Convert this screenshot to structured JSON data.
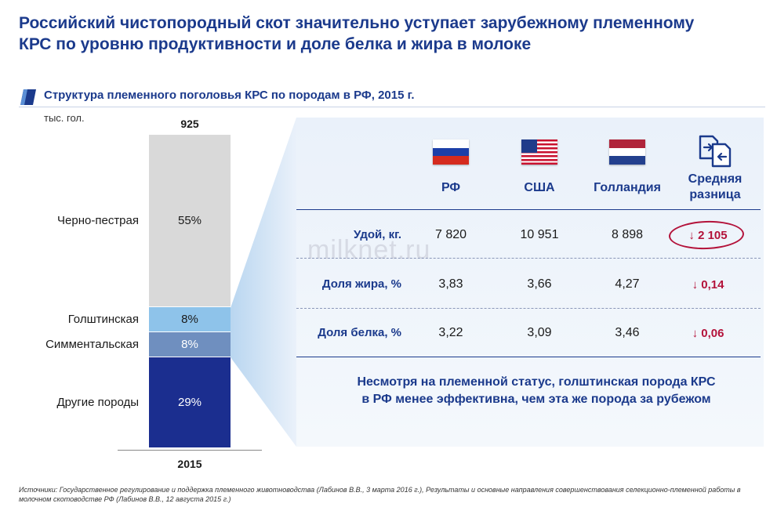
{
  "title_line1": "Российский чистопородный скот значительно уступает зарубежному племенному",
  "title_line2": "КРС по уровню продуктивности и доле белка и жира в молоке",
  "watermark": "milknet.ru",
  "chart_data": {
    "type": "bar",
    "title": "Структура племенного поголовья КРС по породам в РФ, 2015 г.",
    "unit_label": "тыс. гол.",
    "total_label": "925",
    "categories": [
      "2015"
    ],
    "series": [
      {
        "name": "Черно-пестрая",
        "values": [
          55
        ],
        "label": "55%",
        "color": "#d9d9d9",
        "text_color": "#1a1a1a"
      },
      {
        "name": "Голштинская",
        "values": [
          8
        ],
        "label": "8%",
        "color": "#8ec3ea",
        "text_color": "#1a1a1a"
      },
      {
        "name": "Симментальская",
        "values": [
          8
        ],
        "label": "8%",
        "color": "#6f8fbf",
        "text_color": "#ffffff"
      },
      {
        "name": "Другие породы",
        "values": [
          29
        ],
        "label": "29%",
        "color": "#1b2e8f",
        "text_color": "#ffffff"
      }
    ],
    "ylim": [
      0,
      100
    ]
  },
  "table": {
    "columns": [
      "РФ",
      "США",
      "Голландия"
    ],
    "diff_header_line1": "Средняя",
    "diff_header_line2": "разница",
    "rows": [
      {
        "label": "Удой, кг.",
        "values": [
          "7 820",
          "10 951",
          "8 898"
        ],
        "diff": "2 105"
      },
      {
        "label": "Доля жира, %",
        "values": [
          "3,83",
          "3,66",
          "4,27"
        ],
        "diff": "0,14"
      },
      {
        "label": "Доля белка, %",
        "values": [
          "3,22",
          "3,09",
          "3,46"
        ],
        "diff": "0,06"
      }
    ],
    "diff_arrow": "↓"
  },
  "note_line1": "Несмотря на племенной статус, голштинская порода КРС",
  "note_line2": "в РФ менее эффективна, чем эта же порода за рубежом",
  "source_line1": "Источники: Государственное регулирование и поддержка племенного животноводства (Лабинов В.В., 3 марта 2016 г.), Результаты и основные направления совершенствования селекционно-племенной работы в",
  "source_line2": "молочном скотоводстве РФ (Лабинов В.В., 12 августа 2015 г.)",
  "colors": {
    "accent": "#1b3a8c",
    "negative": "#b3123a"
  }
}
